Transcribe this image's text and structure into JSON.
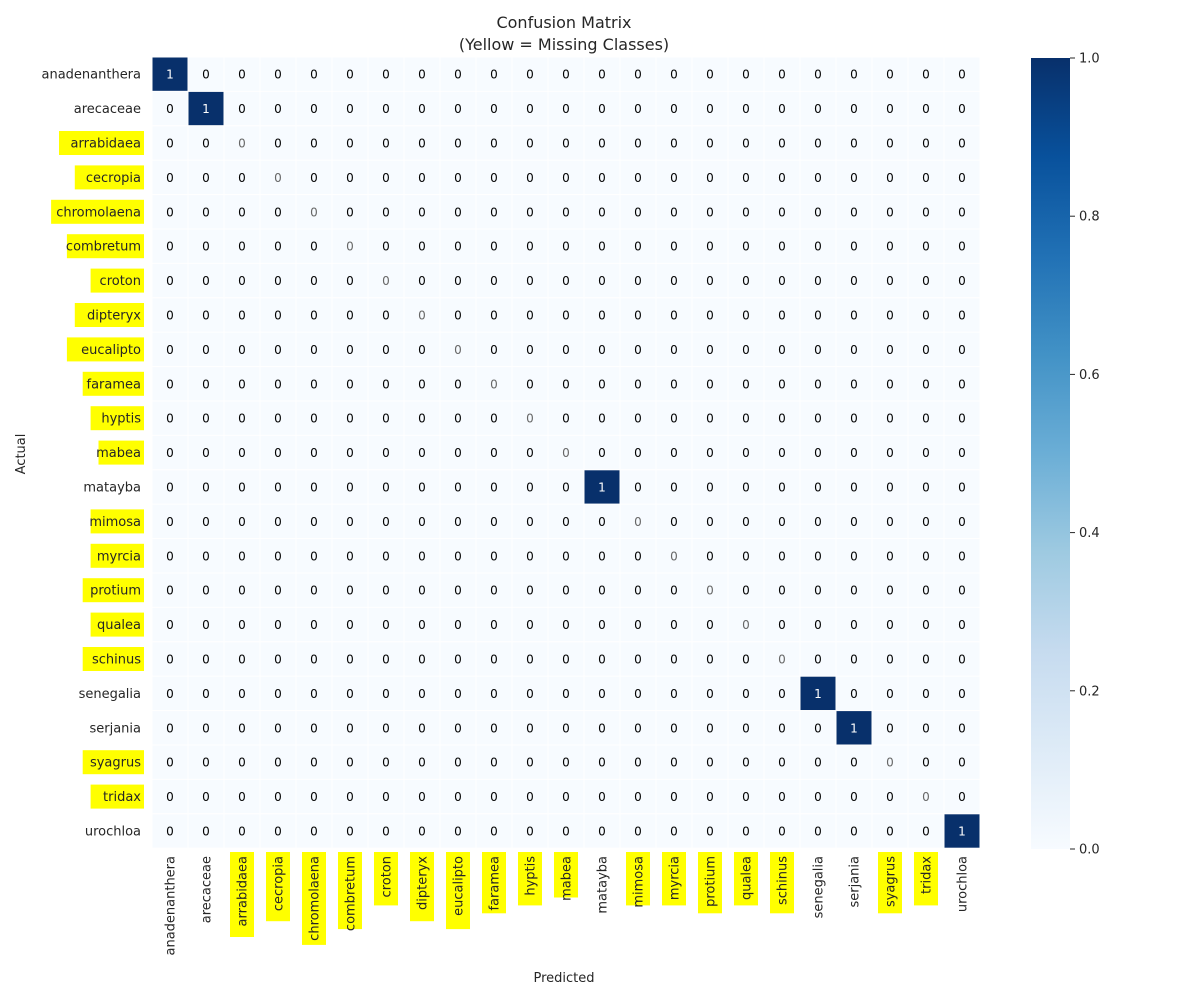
{
  "chart_data": {
    "type": "heatmap",
    "title": "Confusion Matrix",
    "subtitle": "(Yellow = Missing Classes)",
    "xlabel": "Predicted",
    "ylabel": "Actual",
    "labels": [
      "anadenanthera",
      "arecaceae",
      "arrabidaea",
      "cecropia",
      "chromolaena",
      "combretum",
      "croton",
      "dipteryx",
      "eucalipto",
      "faramea",
      "hyptis",
      "mabea",
      "matayba",
      "mimosa",
      "myrcia",
      "protium",
      "qualea",
      "schinus",
      "senegalia",
      "serjania",
      "syagrus",
      "tridax",
      "urochloa"
    ],
    "missing_classes": [
      "arrabidaea",
      "cecropia",
      "chromolaena",
      "combretum",
      "croton",
      "dipteryx",
      "eucalipto",
      "faramea",
      "hyptis",
      "mabea",
      "mimosa",
      "myrcia",
      "protium",
      "qualea",
      "schinus",
      "syagrus",
      "tridax"
    ],
    "nonzero_cells": [
      {
        "actual": "anadenanthera",
        "predicted": "anadenanthera",
        "value": 1
      },
      {
        "actual": "arecaceae",
        "predicted": "arecaceae",
        "value": 1
      },
      {
        "actual": "matayba",
        "predicted": "matayba",
        "value": 1
      },
      {
        "actual": "senegalia",
        "predicted": "senegalia",
        "value": 1
      },
      {
        "actual": "serjania",
        "predicted": "serjania",
        "value": 1
      },
      {
        "actual": "urochloa",
        "predicted": "urochloa",
        "value": 1
      }
    ],
    "default_value": 0,
    "colormap": "Blues",
    "vmin": 0,
    "vmax": 1,
    "colorbar_ticks": [
      "0.0",
      "0.2",
      "0.4",
      "0.6",
      "0.8",
      "1.0"
    ],
    "highlight_color": "#ffff00"
  }
}
